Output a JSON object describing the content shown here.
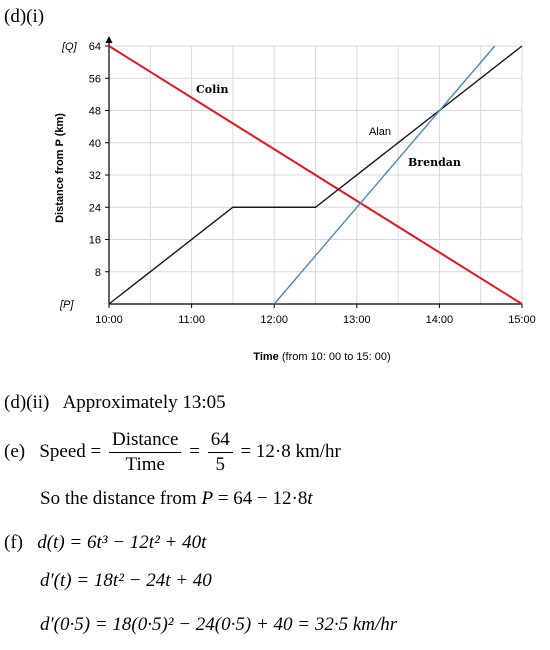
{
  "parts": {
    "d_i_label": "(d)(i)",
    "d_ii_label": "(d)(ii)",
    "d_ii_text": "Approximately 13:05",
    "e_label": "(e)",
    "e_speed_word": "Speed",
    "e_frac1_num": "Distance",
    "e_frac1_den": "Time",
    "e_frac2_num": "64",
    "e_frac2_den": "5",
    "e_result": "12·8 km/hr",
    "e_line2": "So the distance from",
    "e_line2_var": "P",
    "e_line2_expr": "= 64 − 12·8",
    "e_line2_t": "t",
    "f_label": "(f)",
    "f_line1": "d(t) = 6t³ − 12t² + 40t",
    "f_line2": "d′(t) = 18t² − 24t + 40",
    "f_line3": "d′(0·5) = 18(0·5)² − 24(0·5) + 40 = 32·5 km/hr"
  },
  "chart_data": {
    "type": "line",
    "xlabel_bold": "Time",
    "xlabel_rest": "(from 10: 00 to 15: 00)",
    "ylabel": "Distance from P (km)",
    "y_top_label": "[Q]",
    "y_bottom_label": "[P]",
    "xlim": [
      0,
      5
    ],
    "ylim": [
      0,
      64
    ],
    "x_ticks": [
      {
        "x": 0,
        "label": "10:00"
      },
      {
        "x": 1,
        "label": "11:00"
      },
      {
        "x": 2,
        "label": "12:00"
      },
      {
        "x": 3,
        "label": "13:00"
      },
      {
        "x": 4,
        "label": "14:00"
      },
      {
        "x": 5,
        "label": "15:00"
      }
    ],
    "y_ticks": [
      8,
      16,
      24,
      32,
      40,
      48,
      56,
      64
    ],
    "grid": true,
    "series": [
      {
        "name": "Colin",
        "color": "#e8141b",
        "points": [
          [
            0,
            64
          ],
          [
            5,
            0
          ]
        ]
      },
      {
        "name": "Alan",
        "color": "#1a1a1a",
        "points": [
          [
            0,
            0
          ],
          [
            1.5,
            24
          ],
          [
            2.5,
            24
          ],
          [
            5,
            64
          ]
        ]
      },
      {
        "name": "Brendan",
        "color": "#4a86c8",
        "points": [
          [
            2,
            0
          ],
          [
            4.67,
            64
          ]
        ]
      }
    ]
  }
}
